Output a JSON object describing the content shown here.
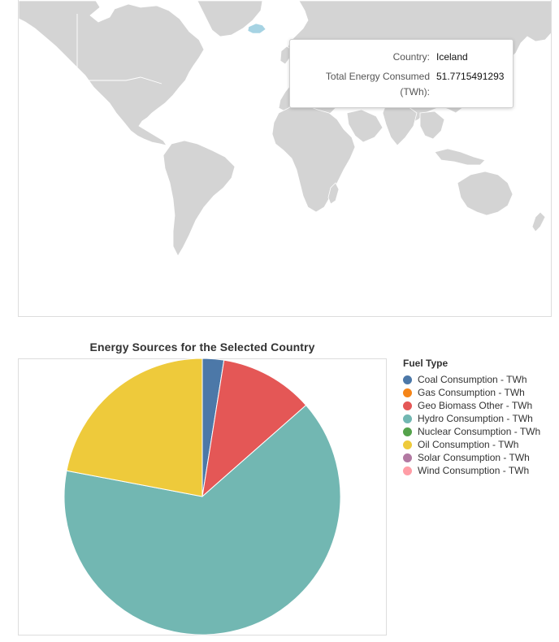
{
  "tooltip": {
    "country_key": "Country:",
    "country_value": "Iceland",
    "energy_key": "Total Energy Consumed",
    "energy_key_unit": "(TWh):",
    "energy_value": "51.7715491293"
  },
  "colors": {
    "land": "#d4d4d4",
    "selected_country": "#a6d3e3",
    "coal": "#4c78a8",
    "gas": "#f58518",
    "geo": "#e45756",
    "hydro": "#72b7b2",
    "nuclear": "#54a24b",
    "oil": "#eeca3b",
    "solar": "#b279a2",
    "wind": "#ff9da6"
  },
  "chart_data": {
    "type": "pie",
    "title": "Energy Sources for the Selected Country",
    "legend_title": "Fuel Type",
    "legend_position": "right",
    "slices": [
      {
        "label": "Coal Consumption - TWh",
        "value": 1.3,
        "color": "#4c78a8"
      },
      {
        "label": "Gas Consumption - TWh",
        "value": 0,
        "color": "#f58518"
      },
      {
        "label": "Geo Biomass Other - TWh",
        "value": 5.7,
        "color": "#e45756"
      },
      {
        "label": "Hydro Consumption - TWh",
        "value": 33.4,
        "color": "#72b7b2"
      },
      {
        "label": "Nuclear Consumption - TWh",
        "value": 0,
        "color": "#54a24b"
      },
      {
        "label": "Oil Consumption - TWh",
        "value": 11.4,
        "color": "#eeca3b"
      },
      {
        "label": "Solar Consumption - TWh",
        "value": 0,
        "color": "#b279a2"
      },
      {
        "label": "Wind Consumption - TWh",
        "value": 0,
        "color": "#ff9da6"
      }
    ]
  }
}
